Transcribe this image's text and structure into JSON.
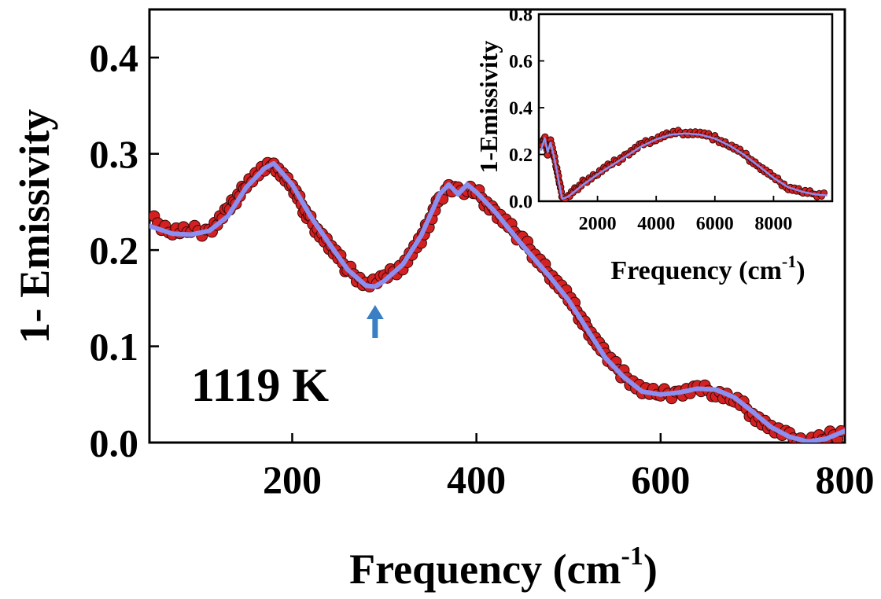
{
  "chart_data": [
    {
      "type": "scatter",
      "xlabel": "Frequency (cm",
      "xlabel_sup": "-1",
      "xlabel_close": ")",
      "ylabel": "1- Emissivity",
      "xlim": [
        45,
        800
      ],
      "ylim": [
        0,
        0.45
      ],
      "x_ticks": [
        200,
        400,
        600,
        800
      ],
      "y_ticks": [
        "0.0",
        "0.1",
        "0.2",
        "0.3",
        "0.4"
      ],
      "annotation": "1119 K",
      "arrow_x": 290,
      "colors": {
        "data": "#d42020",
        "fit": "#8a8ff0",
        "arrow": "#3a7ec4"
      },
      "series": [
        {
          "kind": "measured",
          "x": [
            50,
            70,
            90,
            110,
            130,
            150,
            170,
            180,
            200,
            220,
            240,
            260,
            280,
            300,
            320,
            340,
            360,
            370,
            380,
            390,
            400,
            420,
            450,
            480,
            500,
            520,
            540,
            560,
            580,
            600,
            620,
            640,
            660,
            680,
            700,
            720,
            740,
            760,
            780,
            800
          ],
          "y": [
            0.23,
            0.22,
            0.22,
            0.22,
            0.24,
            0.27,
            0.285,
            0.29,
            0.265,
            0.23,
            0.205,
            0.18,
            0.165,
            0.17,
            0.185,
            0.21,
            0.255,
            0.265,
            0.26,
            0.265,
            0.26,
            0.24,
            0.21,
            0.175,
            0.15,
            0.12,
            0.09,
            0.07,
            0.055,
            0.05,
            0.052,
            0.055,
            0.053,
            0.045,
            0.03,
            0.015,
            0.005,
            0.002,
            0.005,
            0.012
          ]
        },
        {
          "kind": "fit",
          "x": [
            45,
            70,
            90,
            110,
            130,
            150,
            170,
            180,
            200,
            220,
            240,
            260,
            280,
            290,
            300,
            320,
            340,
            360,
            370,
            380,
            390,
            400,
            420,
            450,
            480,
            500,
            520,
            540,
            560,
            580,
            600,
            620,
            640,
            660,
            680,
            700,
            720,
            740,
            760,
            780,
            800
          ],
          "y": [
            0.225,
            0.217,
            0.216,
            0.22,
            0.235,
            0.265,
            0.285,
            0.29,
            0.268,
            0.235,
            0.207,
            0.18,
            0.163,
            0.162,
            0.168,
            0.185,
            0.215,
            0.258,
            0.268,
            0.258,
            0.268,
            0.26,
            0.24,
            0.205,
            0.172,
            0.148,
            0.118,
            0.088,
            0.068,
            0.053,
            0.05,
            0.052,
            0.056,
            0.055,
            0.047,
            0.032,
            0.016,
            0.006,
            0.001,
            0.004,
            0.012
          ]
        }
      ]
    },
    {
      "type": "scatter",
      "inset": true,
      "xlabel": "Frequency (cm",
      "xlabel_sup": "-1",
      "xlabel_close": ")",
      "ylabel": "1-Emissivity",
      "xlim": [
        0,
        10000
      ],
      "ylim": [
        0,
        0.8
      ],
      "x_ticks": [
        2000,
        4000,
        6000,
        8000
      ],
      "y_ticks": [
        "0.0",
        "0.2",
        "0.4",
        "0.6",
        "0.8"
      ],
      "series": [
        {
          "kind": "measured",
          "x": [
            80,
            200,
            300,
            400,
            500,
            600,
            700,
            800,
            1000,
            1500,
            2000,
            2500,
            3000,
            3500,
            4000,
            4500,
            5000,
            5500,
            6000,
            6500,
            7000,
            7500,
            8000,
            8500,
            9000,
            9400,
            9800
          ],
          "y": [
            0.23,
            0.28,
            0.2,
            0.26,
            0.2,
            0.15,
            0.08,
            0.02,
            0.02,
            0.08,
            0.12,
            0.16,
            0.2,
            0.24,
            0.27,
            0.29,
            0.295,
            0.29,
            0.27,
            0.24,
            0.2,
            0.15,
            0.1,
            0.06,
            0.04,
            0.03,
            0.03
          ]
        },
        {
          "kind": "fit",
          "x": [
            80,
            200,
            300,
            400,
            500,
            600,
            700,
            800,
            1000,
            1500,
            2000,
            2500,
            3000,
            3500,
            4000,
            4500,
            5000,
            5500,
            6000,
            6500,
            7000,
            7500,
            8000,
            8500,
            9000,
            9400,
            9800
          ],
          "y": [
            0.22,
            0.27,
            0.21,
            0.25,
            0.2,
            0.14,
            0.07,
            0.01,
            0.02,
            0.07,
            0.115,
            0.155,
            0.195,
            0.235,
            0.265,
            0.285,
            0.29,
            0.285,
            0.268,
            0.238,
            0.198,
            0.15,
            0.1,
            0.06,
            0.04,
            0.03,
            0.025
          ]
        }
      ]
    }
  ]
}
